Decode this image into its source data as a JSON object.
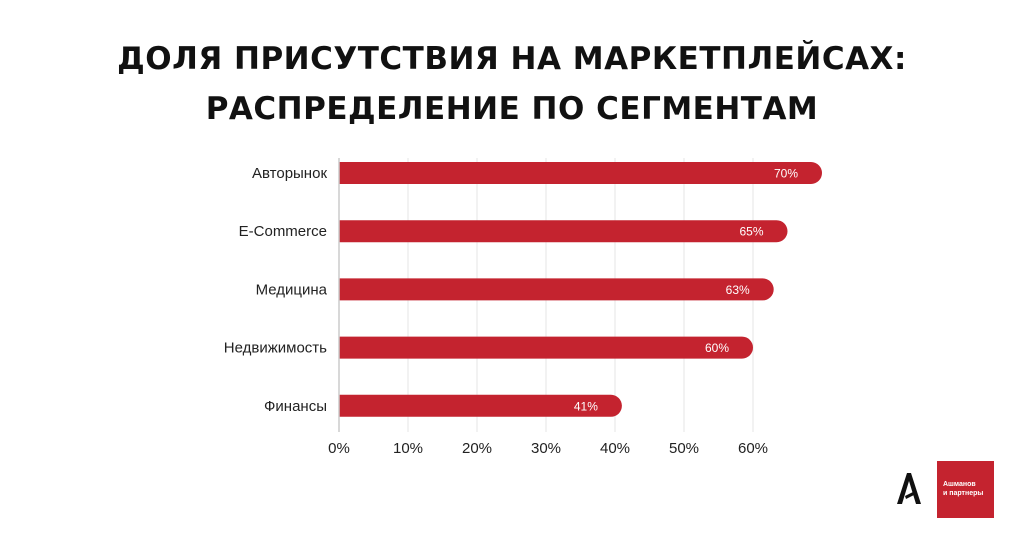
{
  "title": {
    "line1": "ДОЛЯ ПРИСУТСТВИЯ НА МАРКЕТПЛЕЙСАХ:",
    "line2": "РАСПРЕДЕЛЕНИЕ ПО СЕГМЕНТАМ"
  },
  "chart_data": {
    "type": "bar",
    "orientation": "horizontal",
    "title": "ДОЛЯ ПРИСУТСТВИЯ НА МАРКЕТПЛЕЙСАХ: РАСПРЕДЕЛЕНИЕ ПО СЕГМЕНТАМ",
    "categories": [
      "Авторынок",
      "E-Commerce",
      "Медицина",
      "Недвижимость",
      "Финансы"
    ],
    "values": [
      70,
      65,
      63,
      60,
      41
    ],
    "data_labels": [
      "70%",
      "65%",
      "63%",
      "60%",
      "41%"
    ],
    "xlim": [
      0,
      60
    ],
    "x_ticks": [
      0,
      10,
      20,
      30,
      40,
      50,
      60
    ],
    "x_tick_labels": [
      "0%",
      "10%",
      "20%",
      "30%",
      "40%",
      "50%",
      "60%"
    ],
    "grid": true,
    "bar_color": "#c4232f"
  },
  "logo": {
    "line1": "Ашманов",
    "line2": "и партнеры",
    "color": "#c4232f"
  }
}
